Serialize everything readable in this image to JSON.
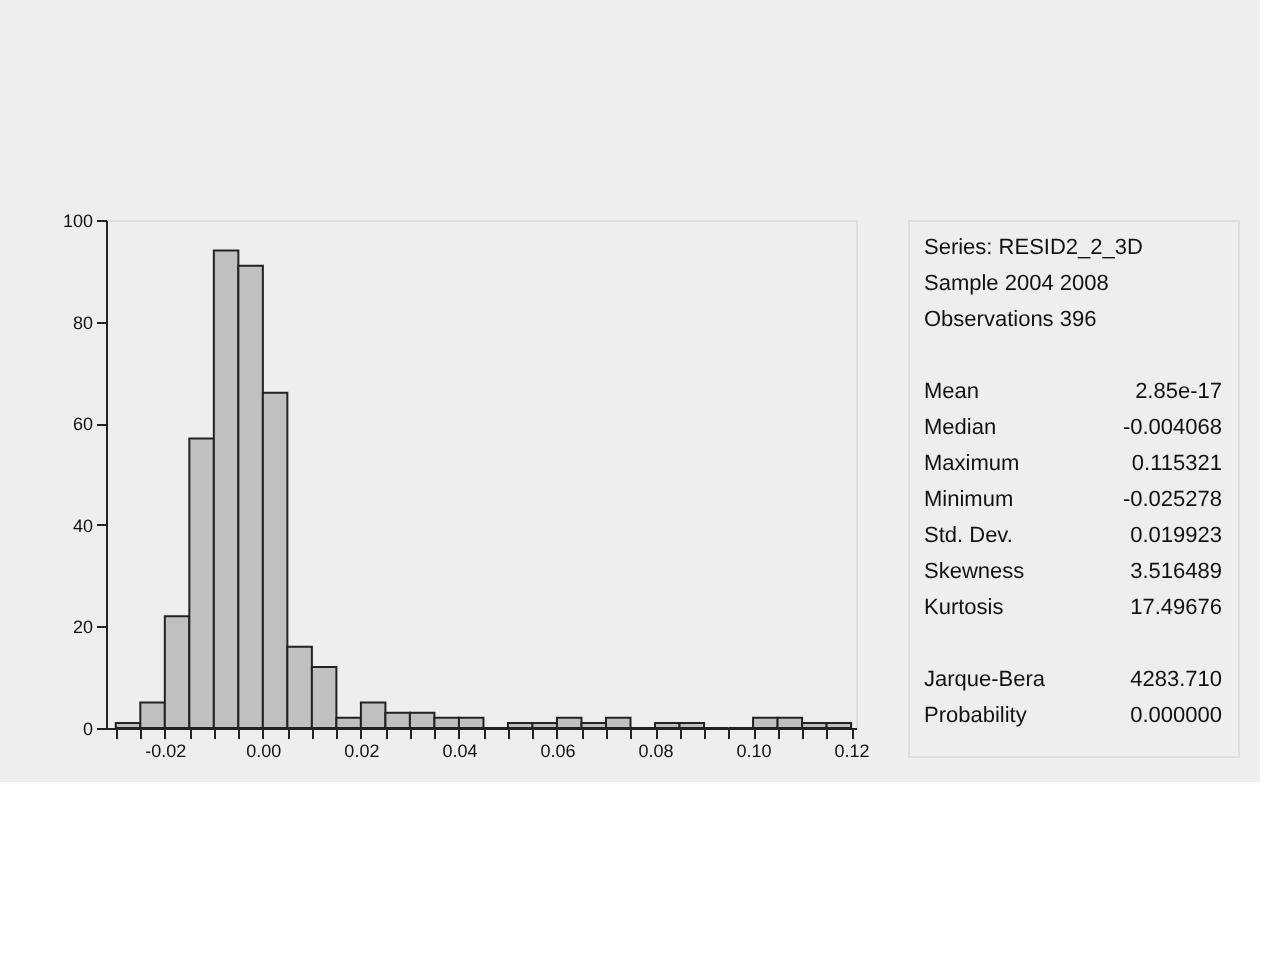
{
  "chart_data": {
    "type": "histogram",
    "bins": [
      -0.03,
      -0.025,
      -0.02,
      -0.015,
      -0.01,
      -0.005,
      0.0,
      0.005,
      0.01,
      0.015,
      0.02,
      0.025,
      0.03,
      0.035,
      0.04,
      0.045,
      0.05,
      0.055,
      0.06,
      0.065,
      0.07,
      0.075,
      0.08,
      0.085,
      0.09,
      0.095,
      0.1,
      0.105,
      0.11,
      0.115,
      0.12
    ],
    "values": [
      1,
      5,
      22,
      57,
      94,
      91,
      66,
      16,
      12,
      2,
      5,
      3,
      3,
      2,
      2,
      0,
      1,
      1,
      2,
      1,
      2,
      0,
      1,
      1,
      0,
      0,
      2,
      2,
      1,
      1
    ],
    "color": "#c0c0c0",
    "xlim": [
      -0.032,
      0.121
    ],
    "xticks": [
      {
        "value": -0.03,
        "label": null
      },
      {
        "value": -0.025,
        "label": null
      },
      {
        "value": -0.02,
        "label": "-0.02"
      },
      {
        "value": -0.015,
        "label": null
      },
      {
        "value": -0.01,
        "label": null
      },
      {
        "value": -0.005,
        "label": null
      },
      {
        "value": 0.0,
        "label": "0.00"
      },
      {
        "value": 0.005,
        "label": null
      },
      {
        "value": 0.01,
        "label": null
      },
      {
        "value": 0.015,
        "label": null
      },
      {
        "value": 0.02,
        "label": "0.02"
      },
      {
        "value": 0.025,
        "label": null
      },
      {
        "value": 0.03,
        "label": null
      },
      {
        "value": 0.035,
        "label": null
      },
      {
        "value": 0.04,
        "label": "0.04"
      },
      {
        "value": 0.045,
        "label": null
      },
      {
        "value": 0.05,
        "label": null
      },
      {
        "value": 0.055,
        "label": null
      },
      {
        "value": 0.06,
        "label": "0.06"
      },
      {
        "value": 0.065,
        "label": null
      },
      {
        "value": 0.07,
        "label": null
      },
      {
        "value": 0.075,
        "label": null
      },
      {
        "value": 0.08,
        "label": "0.08"
      },
      {
        "value": 0.085,
        "label": null
      },
      {
        "value": 0.09,
        "label": null
      },
      {
        "value": 0.095,
        "label": null
      },
      {
        "value": 0.1,
        "label": "0.10"
      },
      {
        "value": 0.105,
        "label": null
      },
      {
        "value": 0.11,
        "label": null
      },
      {
        "value": 0.115,
        "label": null
      },
      {
        "value": 0.12,
        "label": "0.12"
      }
    ],
    "ylim": [
      0,
      100
    ],
    "yticks": [
      0,
      20,
      40,
      60,
      80,
      100
    ],
    "grid": false,
    "annotations": [
      "Series: RESID2_2_3D",
      "Sample 2004 2008",
      "Observations 396",
      "Mean",
      "2.85e-17",
      "Median",
      "-0.004068",
      "Maximum",
      "0.115321",
      "Minimum",
      "-0.025278",
      "Std. Dev.",
      "0.019923",
      "Skewness",
      "3.516489",
      "Kurtosis",
      "17.49676",
      "Jarque-Bera",
      "4283.710",
      "Probability",
      "0.000000"
    ]
  }
}
